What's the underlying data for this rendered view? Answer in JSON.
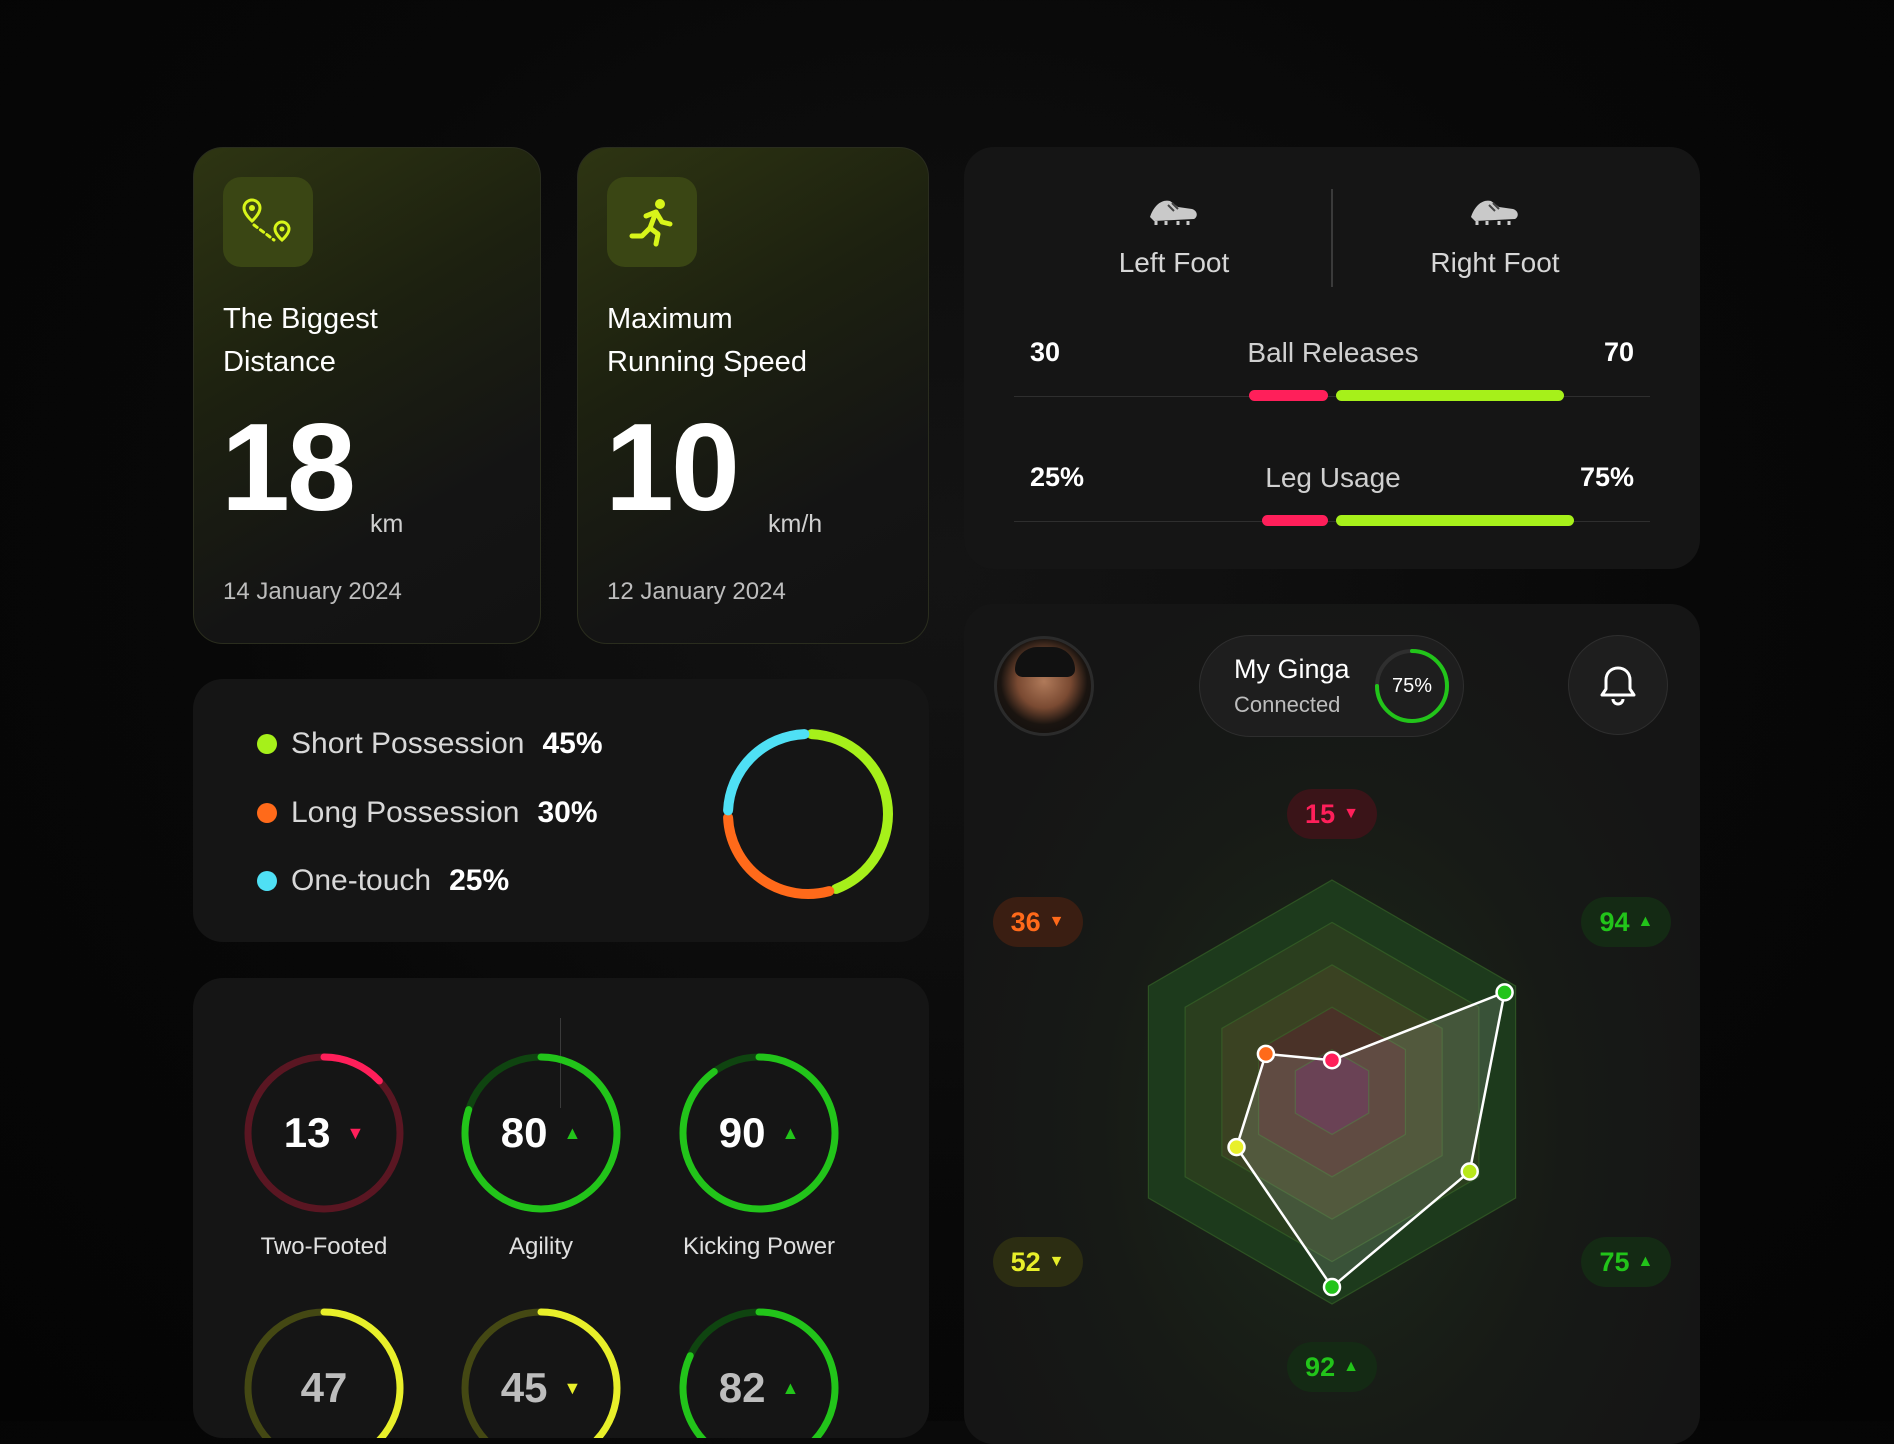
{
  "stats": [
    {
      "icon": "route-pin-icon",
      "title_line1": "The Biggest",
      "title_line2": "Distance",
      "value": "18",
      "unit": "km",
      "date": "14 January 2024"
    },
    {
      "icon": "running-person-icon",
      "title_line1": "Maximum",
      "title_line2": "Running Speed",
      "value": "10",
      "unit": "km/h",
      "date": "12 January 2024"
    }
  ],
  "feet": {
    "left_label": "Left Foot",
    "right_label": "Right Foot",
    "rows": [
      {
        "label": "Ball Releases",
        "left": "30",
        "right": "70",
        "left_share": 0.3,
        "right_share": 0.7
      },
      {
        "label": "Leg Usage",
        "left": "25%",
        "right": "75%",
        "left_share": 0.25,
        "right_share": 0.75
      }
    ],
    "colors": {
      "left": "#ff1f5a",
      "right": "#a6f01a"
    }
  },
  "possession": {
    "items": [
      {
        "label": "Short Possession",
        "value": "45%",
        "share": 0.45,
        "color": "#a6f01a"
      },
      {
        "label": "Long Possession",
        "value": "30%",
        "share": 0.3,
        "color": "#ff6a1a"
      },
      {
        "label": "One-touch",
        "value": "25%",
        "share": 0.25,
        "color": "#4fe0f5"
      }
    ]
  },
  "skills": [
    {
      "label": "Two-Footed",
      "value": "13",
      "trend": "down",
      "level": 0.13,
      "color": "#ff1f5a",
      "track": "#5a1622"
    },
    {
      "label": "Agility",
      "value": "80",
      "trend": "up",
      "level": 0.8,
      "color": "#22c41a",
      "track": "#0f4410"
    },
    {
      "label": "Kicking Power",
      "value": "90",
      "trend": "up",
      "level": 0.9,
      "color": "#22c41a",
      "track": "#0f4410"
    },
    {
      "label": "",
      "value": "47",
      "trend": "none",
      "level": 0.47,
      "color": "#e8ef2a",
      "track": "#444813"
    },
    {
      "label": "",
      "value": "45",
      "trend": "down",
      "level": 0.45,
      "color": "#e8ef2a",
      "track": "#444813"
    },
    {
      "label": "",
      "value": "82",
      "trend": "up",
      "level": 0.82,
      "color": "#22c41a",
      "track": "#0f4410"
    }
  ],
  "profile": {
    "name": "My Ginga",
    "status": "Connected",
    "progress": "75%",
    "progress_level": 0.75,
    "avatar": "avatar-photo",
    "bell": "bell-icon"
  },
  "radar": {
    "max": 100,
    "axes": [
      {
        "value": "15",
        "trend": "down",
        "num": 15,
        "color": "#ff1f5a",
        "bg": "#3a1418"
      },
      {
        "value": "94",
        "trend": "up",
        "num": 94,
        "color": "#22c41a",
        "bg": "#142a14"
      },
      {
        "value": "75",
        "trend": "up",
        "num": 75,
        "color": "#22c41a",
        "bg": "#142a14"
      },
      {
        "value": "92",
        "trend": "up",
        "num": 92,
        "color": "#22c41a",
        "bg": "#142a14"
      },
      {
        "value": "52",
        "trend": "down",
        "num": 52,
        "color": "#e8ef2a",
        "bg": "#2c2d12"
      },
      {
        "value": "36",
        "trend": "down",
        "num": 36,
        "color": "#ff6a1a",
        "bg": "#3a1e12"
      }
    ],
    "point_colors": [
      "#ff1f5a",
      "#22c41a",
      "#b8e81a",
      "#22c41a",
      "#e8ef2a",
      "#ff6a1a"
    ]
  }
}
